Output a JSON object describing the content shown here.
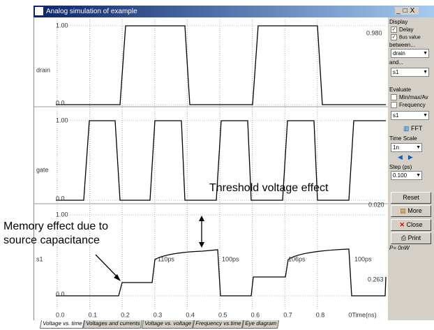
{
  "window": {
    "title": "Analog simulation of example"
  },
  "plots": [
    {
      "name": "drain",
      "ymax": "1.00",
      "ymin": "0.0",
      "value": "0.980"
    },
    {
      "name": "gate",
      "ymax": "1.00",
      "ymin": "0.0",
      "value": "0.020"
    },
    {
      "name": "s1",
      "ymax": "1.00",
      "ymin": "0.0",
      "value": "0.263",
      "delays": [
        "110ps",
        "100ps",
        "106ps",
        "100ps"
      ]
    }
  ],
  "time_axis": {
    "ticks": [
      "0.0",
      "0.1",
      "0.2",
      "0.3",
      "0.4",
      "0.5",
      "0.6",
      "0.7",
      "0.8"
    ],
    "label": "0Time(ns)"
  },
  "panel": {
    "display": "Display",
    "delay": "Delay",
    "bus_value": "Bus value",
    "between": "between...",
    "from": "drain",
    "and": "and...",
    "to": "s1",
    "evaluate": "Evaluate",
    "minmax": "Min/max/Av",
    "frequency": "Frequency",
    "eval_signal": "s1",
    "fft": "FFT",
    "time_scale": "Time Scale",
    "scale": "1n",
    "step": "Step (ps)",
    "step_value": "0.100",
    "reset": "Reset",
    "more": "More",
    "close": "Close",
    "print": "Print",
    "power": "P=  0nW"
  },
  "tabs": [
    "Voltage vs. time",
    "Voltages and currents",
    "Voltage vs. voltage",
    "Frequency vs.time",
    "Eye diagram"
  ],
  "annotations": {
    "memory": [
      "Memory effect due to",
      "source capacitance"
    ],
    "threshold": "Threshold voltage effect"
  }
}
